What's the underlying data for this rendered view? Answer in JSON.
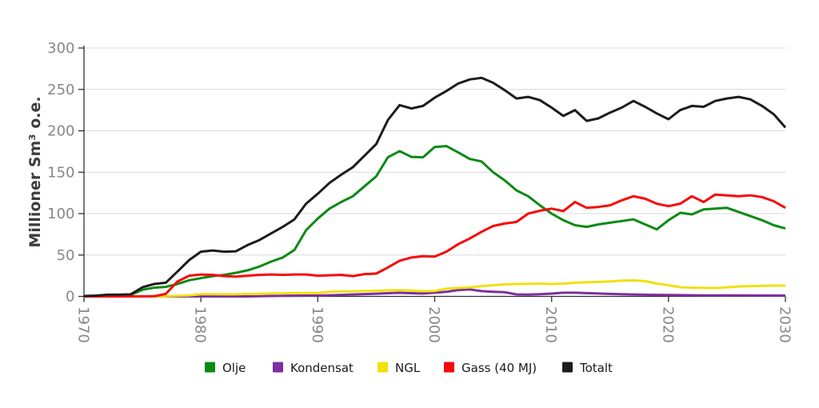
{
  "chart_data": {
    "type": "line",
    "title": "",
    "ylabel": "Millioner Sm³ o.e.",
    "xlabel": "",
    "ylim": [
      0,
      300
    ],
    "x_range": [
      1970,
      2030
    ],
    "y_ticks": [
      0,
      50,
      100,
      150,
      200,
      250,
      300
    ],
    "x_ticks": [
      1970,
      1980,
      1990,
      2000,
      2010,
      2020,
      2030
    ],
    "grid": "horizontal",
    "legend_position": "bottom-center",
    "years": [
      1970,
      1971,
      1972,
      1973,
      1974,
      1975,
      1976,
      1977,
      1978,
      1979,
      1980,
      1981,
      1982,
      1983,
      1984,
      1985,
      1986,
      1987,
      1988,
      1989,
      1990,
      1991,
      1992,
      1993,
      1994,
      1995,
      1996,
      1997,
      1998,
      1999,
      2000,
      2001,
      2002,
      2003,
      2004,
      2005,
      2006,
      2007,
      2008,
      2009,
      2010,
      2011,
      2012,
      2013,
      2014,
      2015,
      2016,
      2017,
      2018,
      2019,
      2020,
      2021,
      2022,
      2023,
      2024,
      2025,
      2026,
      2027,
      2028,
      2029,
      2030
    ],
    "series": [
      {
        "name": "Olje",
        "color": "#0a8a14",
        "values": [
          0,
          0.4,
          1.6,
          1.6,
          1.8,
          8,
          10.5,
          11.5,
          15,
          19.5,
          22,
          24.5,
          26,
          28.5,
          31.5,
          36,
          42,
          47,
          56,
          80,
          94,
          106,
          114,
          121,
          133,
          145,
          168,
          175.5,
          168.5,
          168,
          180.5,
          181.5,
          174,
          166,
          163,
          150,
          140,
          128,
          121,
          110,
          100,
          92,
          86,
          84,
          87,
          89,
          91,
          93,
          87,
          81,
          92,
          101,
          99,
          105,
          106,
          107,
          102,
          97,
          92,
          86,
          82
        ]
      },
      {
        "name": "Kondensat",
        "color": "#7d2ea0",
        "values": [
          0,
          0,
          0,
          0,
          0,
          0,
          0,
          0,
          0,
          0,
          0,
          0,
          0,
          0,
          0,
          0.3,
          0.5,
          0.7,
          0.9,
          1,
          1.1,
          1.4,
          1.8,
          2.3,
          2.8,
          3.3,
          3.9,
          4.3,
          3.9,
          3.5,
          4.4,
          5.5,
          7.6,
          8.4,
          6.4,
          5.6,
          5,
          2.4,
          2.2,
          2.6,
          3.4,
          4.4,
          4.4,
          4,
          3.5,
          3,
          2.6,
          2.3,
          2,
          1.8,
          1.6,
          1.5,
          1.4,
          1.3,
          1.3,
          1.2,
          1.2,
          1.1,
          1.1,
          1,
          1
        ]
      },
      {
        "name": "NGL",
        "color": "#f0e10e",
        "values": [
          0,
          0,
          0,
          0,
          0,
          0,
          0,
          0.3,
          0.8,
          1.3,
          2.6,
          2.6,
          2.5,
          2.5,
          3,
          3.2,
          3.5,
          3.8,
          4,
          4.2,
          4.2,
          5.5,
          6,
          6,
          6.5,
          6.8,
          7.2,
          7.5,
          7,
          6.3,
          6.6,
          9.3,
          10.2,
          10.8,
          12.5,
          13.5,
          14.5,
          15,
          15.2,
          15.5,
          15,
          15.5,
          16.5,
          17,
          17.5,
          18.2,
          19,
          19.3,
          18.5,
          15.5,
          13.5,
          11,
          10.5,
          10.3,
          10,
          11,
          12,
          12.5,
          12.8,
          13,
          13
        ]
      },
      {
        "name": "Gass (40 MJ)",
        "color": "#f70808",
        "values": [
          0,
          0,
          0,
          0,
          0,
          0,
          0.2,
          3,
          18,
          25,
          26.5,
          26,
          24.5,
          24,
          25,
          26,
          26.5,
          26,
          26.5,
          26.5,
          25,
          25.5,
          26,
          24.5,
          27,
          27.5,
          35,
          43,
          47,
          48.5,
          48,
          54,
          63,
          70,
          78,
          85,
          88,
          90,
          100,
          103.5,
          106,
          103,
          114,
          107,
          108,
          110,
          116,
          121,
          118,
          112,
          109,
          112,
          121,
          114,
          123,
          122,
          121,
          122,
          120,
          115,
          107
        ]
      },
      {
        "name": "Totalt",
        "color": "#1c1c1c",
        "values": [
          0.5,
          1,
          2,
          2,
          2.5,
          11,
          15,
          16.5,
          30,
          44,
          54,
          55.5,
          54,
          54.5,
          62,
          68,
          76,
          84,
          93,
          112,
          124,
          137,
          147,
          156,
          170,
          184,
          213,
          231,
          227,
          230,
          240,
          248,
          257,
          262,
          264,
          258,
          249,
          239,
          241,
          237,
          228,
          218,
          225,
          212,
          215,
          222,
          228,
          236,
          229,
          221,
          214,
          225,
          230,
          229,
          236,
          239,
          241,
          238,
          230,
          220,
          204
        ]
      }
    ]
  },
  "colors": {
    "background": "#ffffff",
    "grid": "#d8d8d8",
    "spine": "#303030",
    "tick_label": "#878787",
    "axis_title": "#3c3c3c",
    "legend_text": "#1a1a1a"
  }
}
